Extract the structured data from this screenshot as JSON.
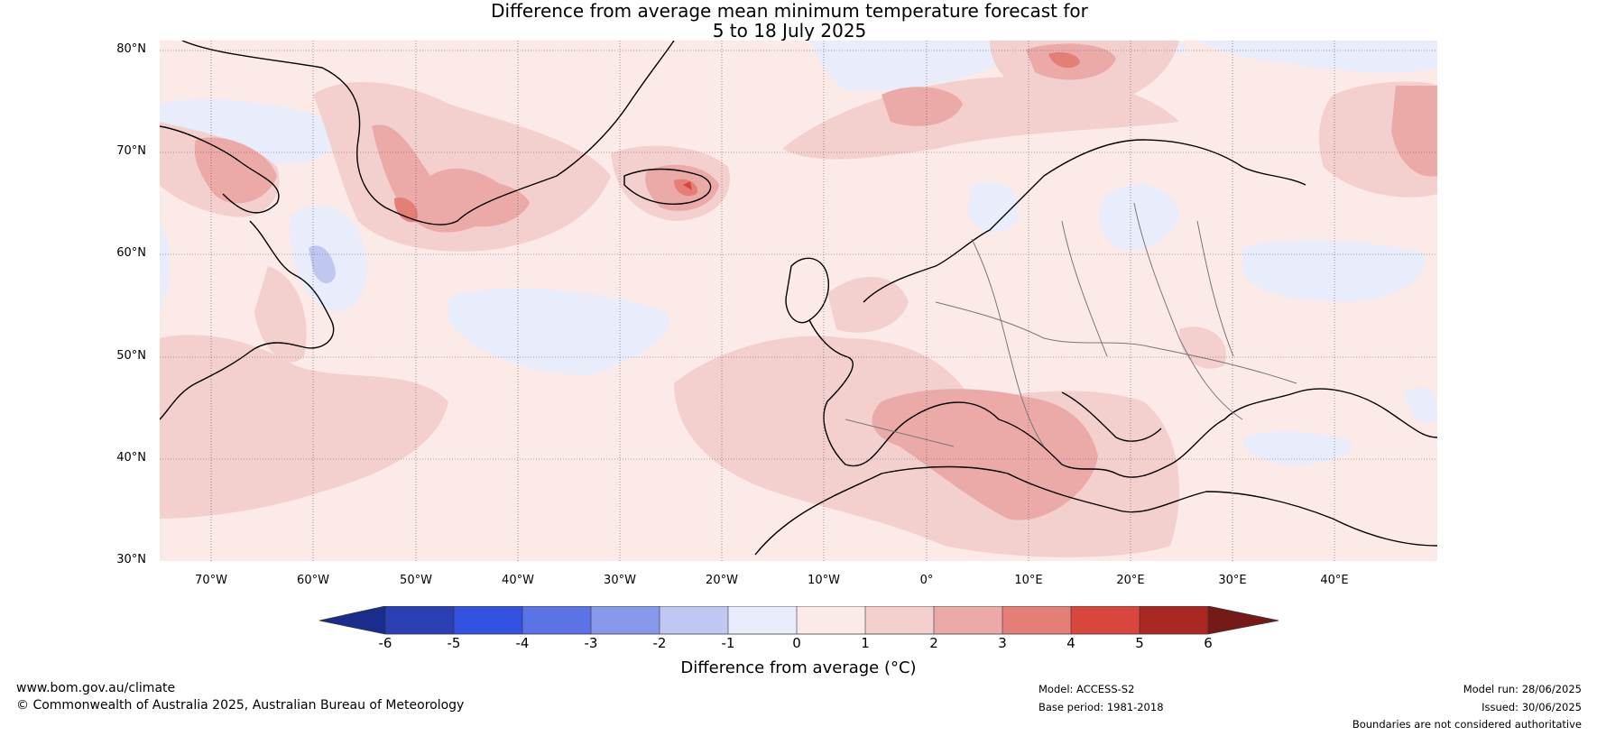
{
  "title": {
    "line1": "Difference from average mean minimum temperature forecast for",
    "line2": "5 to 18 July 2025"
  },
  "map": {
    "lat_labels": [
      "80°N",
      "70°N",
      "60°N",
      "50°N",
      "40°N",
      "30°N"
    ],
    "lon_labels": [
      "70°W",
      "60°W",
      "50°W",
      "40°W",
      "30°W",
      "20°W",
      "10°W",
      "0°",
      "10°E",
      "20°E",
      "30°E",
      "40°E"
    ],
    "colors": {
      "neg6": "#1a2d8c",
      "neg5": "#2a3fb4",
      "neg4": "#3452e0",
      "neg3": "#5c73e6",
      "neg2": "#8898ea",
      "neg1": "#c0c8f2",
      "zero_neg": "#e8ecfb",
      "pos0": "#fbeae8",
      "pos1": "#f3cfcd",
      "pos2": "#ebaaa8",
      "pos3": "#e47f78",
      "pos4": "#d8473e",
      "pos5": "#a92824",
      "pos6": "#761a18",
      "coast": "#000000",
      "border": "#777777"
    }
  },
  "colorbar": {
    "ticks": [
      "-6",
      "-5",
      "-4",
      "-3",
      "-2",
      "-1",
      "0",
      "1",
      "2",
      "3",
      "4",
      "5",
      "6"
    ],
    "label": "Difference from average (°C)"
  },
  "footer": {
    "website": "www.bom.gov.au/climate",
    "copyright": "© Commonwealth of Australia 2025, Australian Bureau of Meteorology",
    "model": "Model: ACCESS-S2",
    "base_period": "Base period: 1981-2018",
    "model_run": "Model run: 28/06/2025",
    "issued": "Issued: 30/06/2025",
    "disclaimer": "Boundaries are not considered authoritative"
  }
}
